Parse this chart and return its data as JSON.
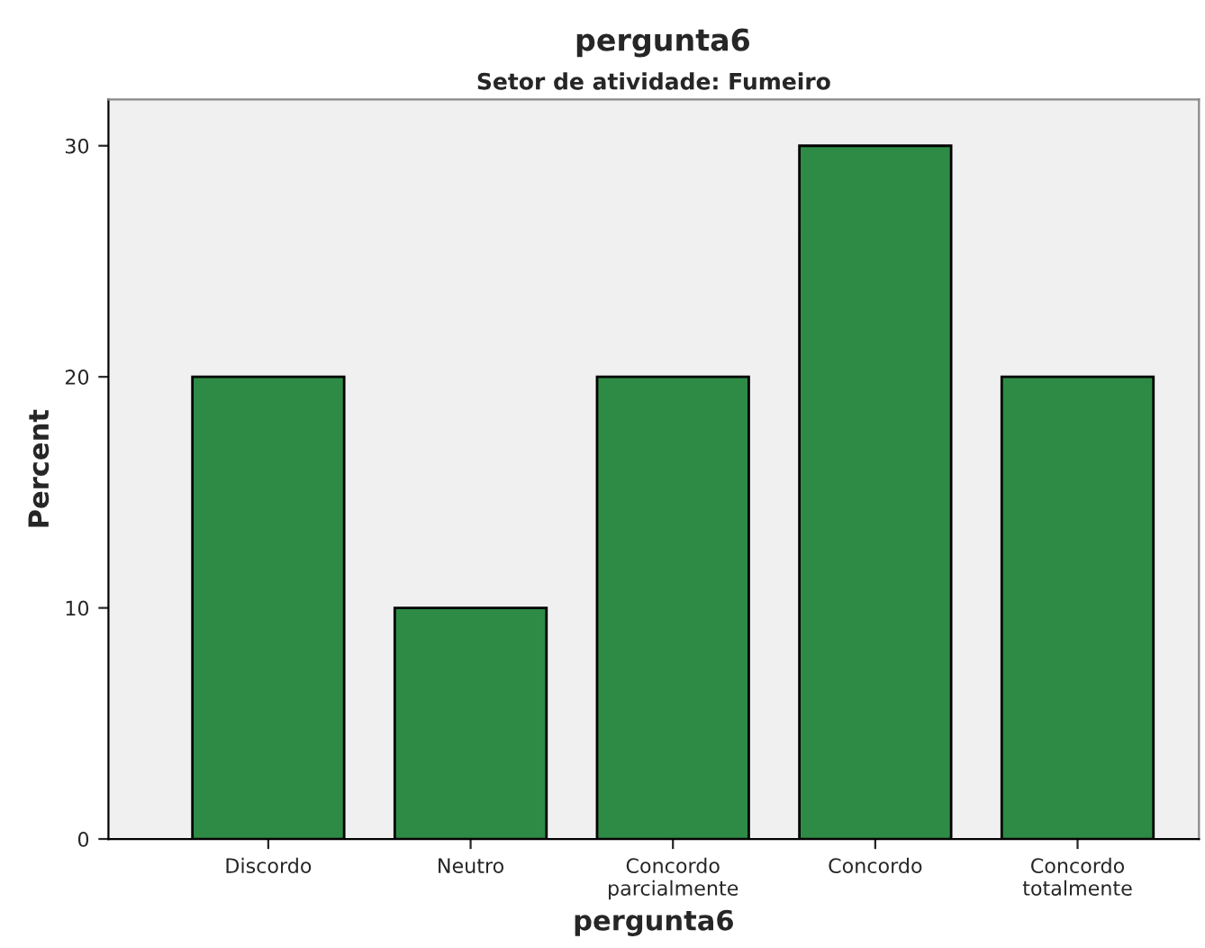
{
  "chart_data": {
    "type": "bar",
    "title": "pergunta6",
    "subtitle": "Setor de atividade: Fumeiro",
    "xlabel": "pergunta6",
    "ylabel": "Percent",
    "categories": [
      "Discordo",
      "Neutro",
      "Concordo\nparcialmente",
      "Concordo",
      "Concordo\ntotalmente"
    ],
    "values": [
      20,
      10,
      20,
      30,
      20
    ],
    "color": "#2e8b45",
    "ylim": [
      0,
      32
    ],
    "yticks": [
      0,
      10,
      20,
      30
    ],
    "grid": false,
    "legend": false
  }
}
